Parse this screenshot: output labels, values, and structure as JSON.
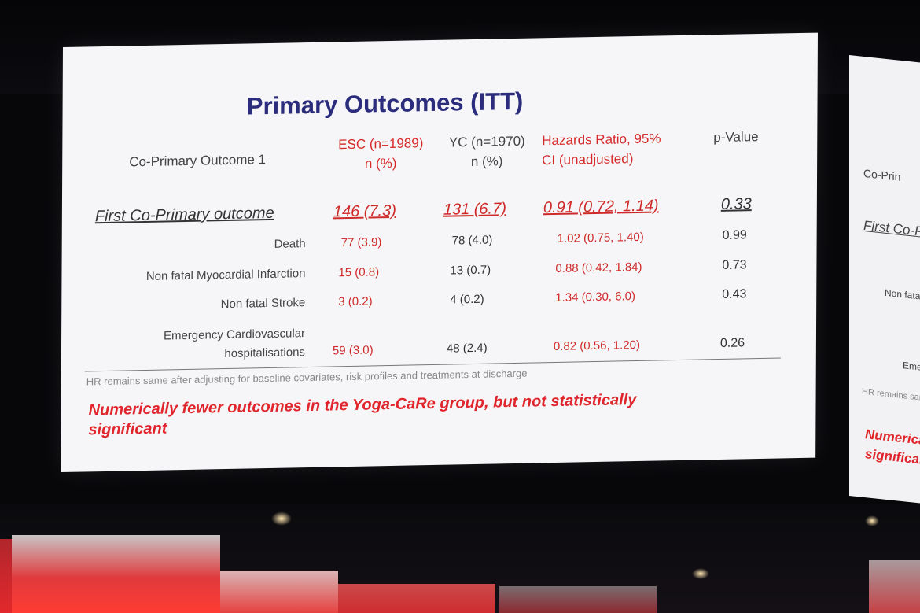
{
  "slide": {
    "title": "Primary Outcomes (ITT)",
    "header": {
      "outcome_label": "Co-Primary Outcome 1",
      "esc_line1": "ESC (n=1989)",
      "esc_line2": "n (%)",
      "yc_line1": "YC (n=1970)",
      "yc_line2": "n (%)",
      "hr_line1": "Hazards Ratio, 95%",
      "hr_line2": "CI (unadjusted)",
      "p_value": "p-Value"
    },
    "first_row": {
      "label": "First Co-Primary outcome",
      "esc": "146 (7.3)",
      "yc": "131 (6.7)",
      "hr": "0.91 (0.72, 1.14)",
      "p": "0.33"
    },
    "rows": [
      {
        "label": "Death",
        "esc": "77 (3.9)",
        "yc": "78 (4.0)",
        "hr": "1.02 (0.75, 1.40)",
        "p": "0.99"
      },
      {
        "label": "Non fatal Myocardial Infarction",
        "esc": "15 (0.8)",
        "yc": "13 (0.7)",
        "hr": "0.88 (0.42, 1.84)",
        "p": "0.73"
      },
      {
        "label": "Non fatal Stroke",
        "esc": "3 (0.2)",
        "yc": "4 (0.2)",
        "hr": "1.34 (0.30, 6.0)",
        "p": "0.43"
      },
      {
        "label_line1": "Emergency Cardiovascular",
        "label_line2": "hospitalisations",
        "esc": "59 (3.0)",
        "yc": "48 (2.4)",
        "hr": "0.82 (0.56, 1.20)",
        "p": "0.26"
      }
    ],
    "note": "HR remains same after adjusting for baseline covariates, risk profiles and treatments at discharge",
    "conclusion_line1": "Numerically fewer outcomes in the Yoga-CaRe group, but not statistically",
    "conclusion_line2": "significant"
  },
  "side_screen": {
    "t1": "Co-Prin",
    "t2": "First Co-P",
    "t3": "Non fata",
    "t4": "Eme",
    "t5": "HR remains sam",
    "t6": "Numerica",
    "t7": "significan"
  },
  "colors": {
    "title": "#2b2d7c",
    "accent_red": "#cf2a2a",
    "slide_bg": "#f6f6f8"
  }
}
